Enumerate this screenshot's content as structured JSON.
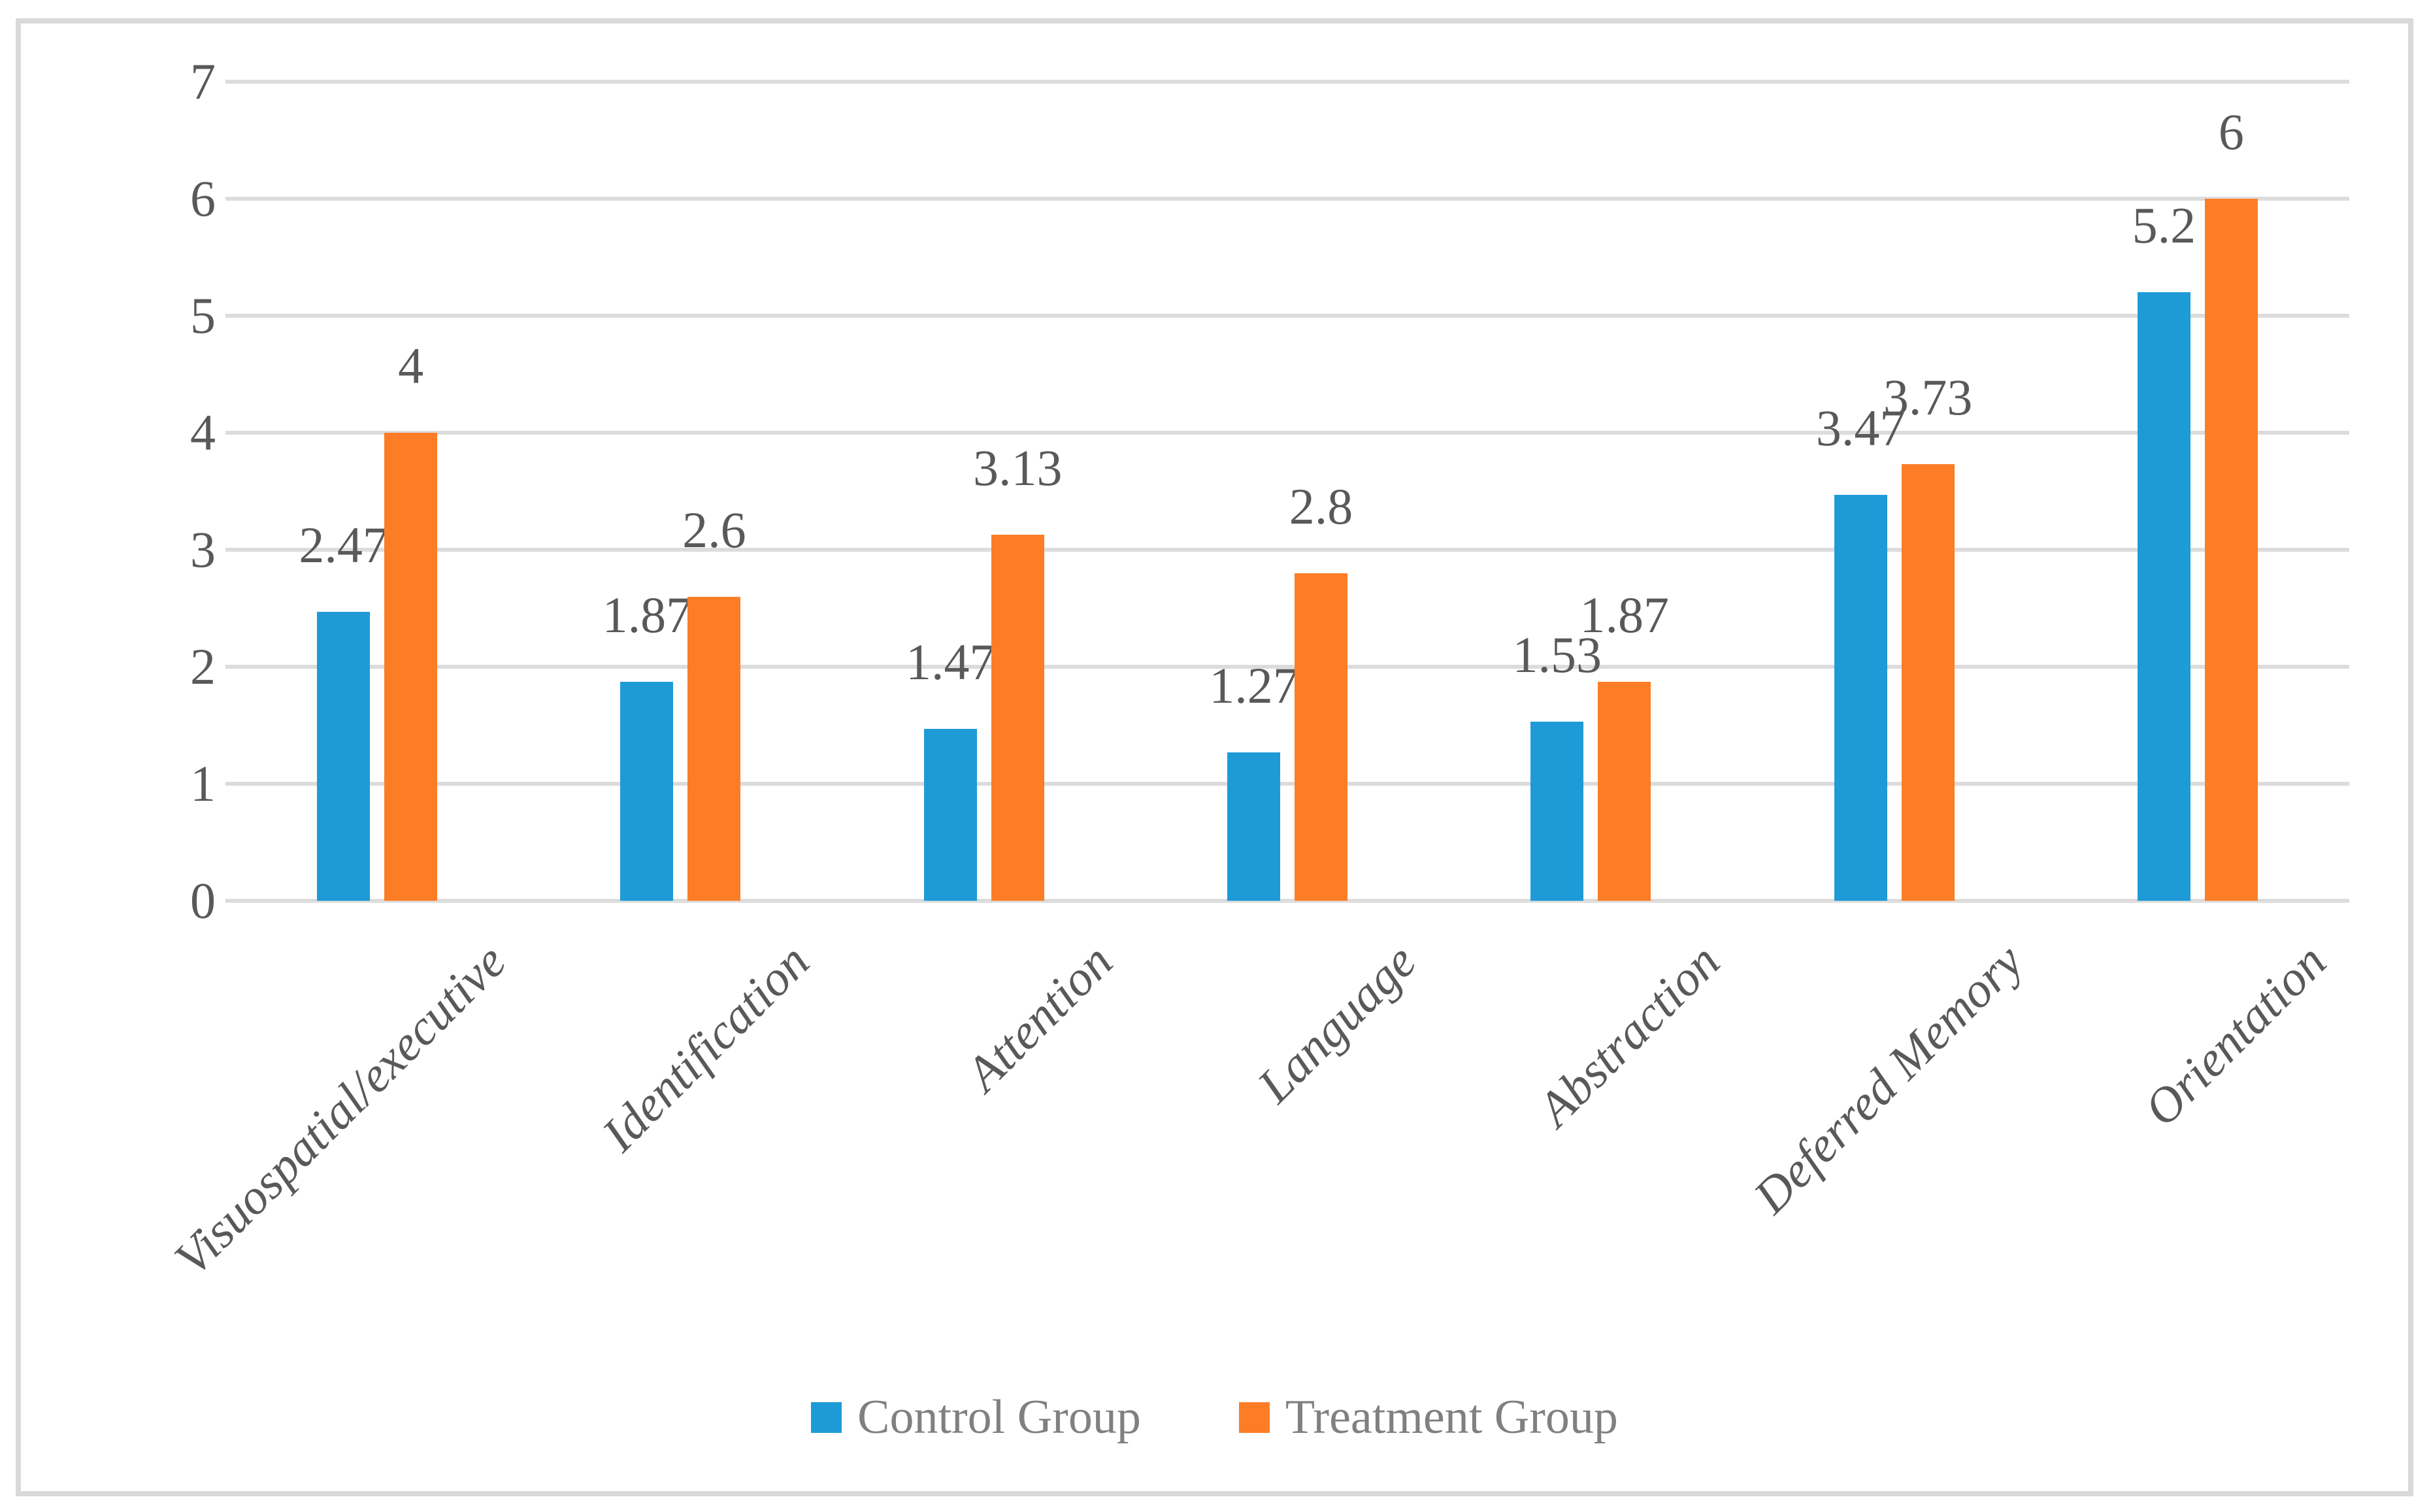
{
  "figure": {
    "background": "#FFFFFF",
    "border_color": "#D9D9D9"
  },
  "chart_data": {
    "type": "bar",
    "title": "",
    "xlabel": "",
    "ylabel": "",
    "categories": [
      "Visuospatial/executive",
      "Identification",
      "Attention",
      "Language",
      "Abstraction",
      "Deferred Memory",
      "Orientation"
    ],
    "series": [
      {
        "name": "Control Group",
        "color": "#1E9BD7",
        "values": [
          2.47,
          1.87,
          1.47,
          1.27,
          1.53,
          3.47,
          5.2
        ],
        "labels": [
          "2.47",
          "1.87",
          "1.47",
          "1.27",
          "1.53",
          "3.47",
          "5.2"
        ]
      },
      {
        "name": "Treatment Group",
        "color": "#FC7D26",
        "values": [
          4,
          2.6,
          3.13,
          2.8,
          1.87,
          3.73,
          6
        ],
        "labels": [
          "4",
          "2.6",
          "3.13",
          "2.8",
          "1.87",
          "3.73",
          "6"
        ]
      }
    ],
    "ylim": [
      0,
      7
    ],
    "yticks": [
      "0",
      "1",
      "2",
      "3",
      "4",
      "5",
      "6",
      "7"
    ],
    "grid": true,
    "gridline_color": "#DCDCDC",
    "tick_color": "#595959",
    "data_label_color": "#595959",
    "category_label_color": "#595959",
    "legend_position": "bottom",
    "legend_text_color": "#808080"
  },
  "legend": {
    "items": [
      {
        "label": "Control Group",
        "color": "#1E9BD7"
      },
      {
        "label": "Treatment Group",
        "color": "#FC7D26"
      }
    ]
  }
}
